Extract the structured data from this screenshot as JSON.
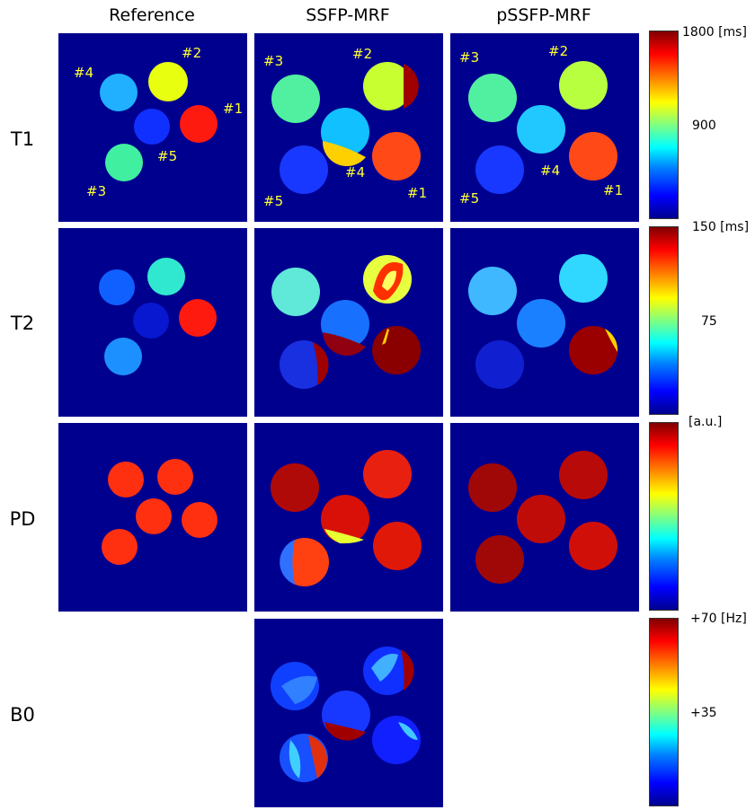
{
  "columns": [
    "Reference",
    "SSFP-MRF",
    "pSSFP-MRF"
  ],
  "rows": [
    "T1",
    "T2",
    "PD",
    "B0"
  ],
  "phantom_labels": {
    "reference": [
      "#1",
      "#2",
      "#3",
      "#4",
      "#5"
    ],
    "ssfp": [
      "#1",
      "#2",
      "#3",
      "#4",
      "#5"
    ],
    "pssfp": [
      "#1",
      "#2",
      "#3",
      "#4",
      "#5"
    ]
  },
  "colorbars": {
    "t1": {
      "top": "1800 [ms]",
      "mid": "900"
    },
    "t2": {
      "top": "150 [ms]",
      "mid": "75"
    },
    "pd": {
      "top": "[a.u.]"
    },
    "b0": {
      "top": "+70 [Hz]",
      "mid": "+35"
    }
  },
  "colors": {
    "background": "#00008f",
    "label": "#ffff33"
  }
}
